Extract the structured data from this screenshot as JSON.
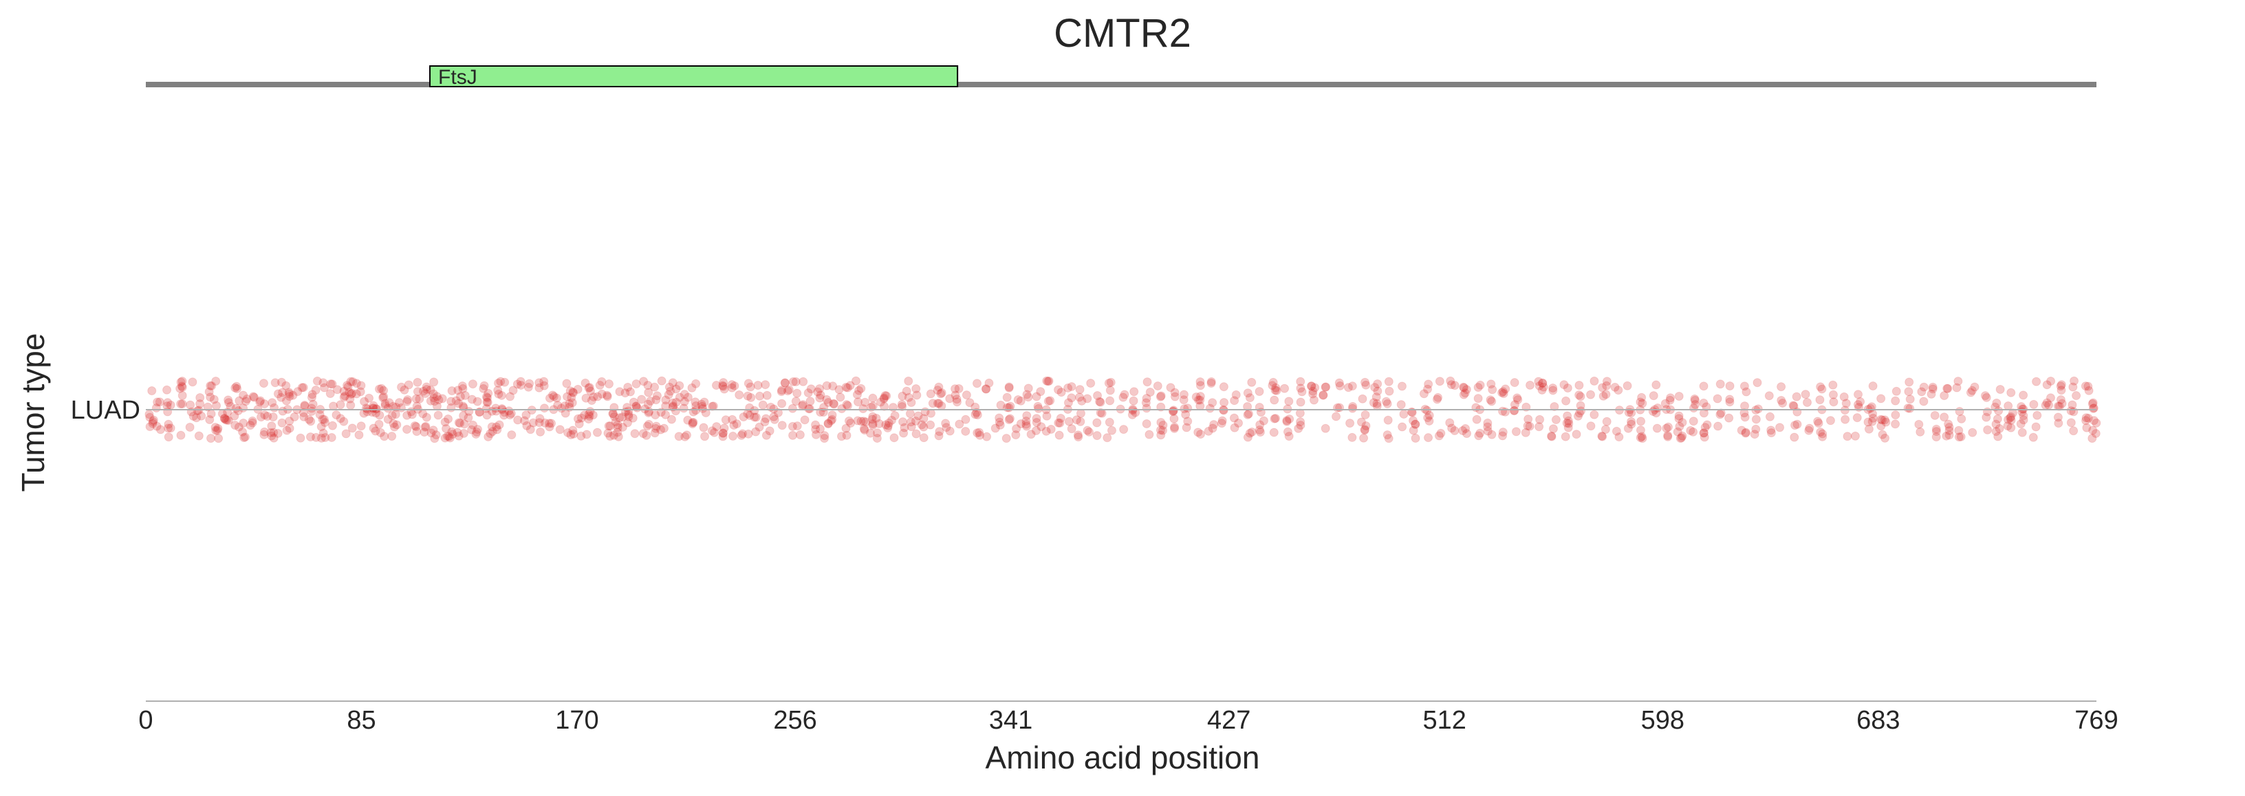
{
  "chart_data": {
    "type": "scatter",
    "title": "CMTR2",
    "xlabel": "Amino acid position",
    "ylabel": "Tumor type",
    "xlim": [
      0,
      769
    ],
    "xticks": [
      "0",
      "85",
      "170",
      "256",
      "341",
      "427",
      "512",
      "598",
      "683",
      "769"
    ],
    "categories": [
      "LUAD"
    ],
    "protein_length": 769,
    "domains": [
      {
        "name": "FtsJ",
        "start": 112,
        "end": 320,
        "color": "#90ee90"
      }
    ],
    "point_color": "#d62728",
    "point_alpha": 0.25,
    "grid": false,
    "series": [
      {
        "category": "LUAD",
        "positions": [
          2,
          5,
          9,
          14,
          18,
          21,
          25,
          28,
          31,
          33,
          36,
          39,
          42,
          45,
          47,
          50,
          53,
          56,
          59,
          62,
          65,
          68,
          70,
          73,
          76,
          79,
          81,
          84,
          87,
          90,
          93,
          95,
          98,
          101,
          104,
          107,
          110,
          113,
          115,
          118,
          120,
          123,
          125,
          128,
          131,
          134,
          136,
          139,
          141,
          144,
          147,
          150,
          152,
          155,
          158,
          160,
          163,
          166,
          168,
          171,
          174,
          176,
          179,
          182,
          185,
          187,
          190,
          193,
          196,
          198,
          201,
          204,
          207,
          210,
          213,
          216,
          220,
          224,
          228,
          232,
          235,
          238,
          241,
          244,
          247,
          250,
          253,
          256,
          259,
          262,
          265,
          268,
          271,
          274,
          277,
          280,
          283,
          286,
          289,
          292,
          295,
          298,
          301,
          304,
          307,
          310,
          313,
          316,
          320,
          324,
          328,
          332,
          336,
          340,
          344,
          348,
          352,
          356,
          360,
          364,
          368,
          372,
          376,
          380,
          385,
          390,
          395,
          400,
          405,
          410,
          415,
          420,
          425,
          430,
          435,
          440,
          445,
          450,
          455,
          460,
          465,
          470,
          475,
          480,
          485,
          490,
          495,
          500,
          505,
          510,
          515,
          520,
          525,
          530,
          535,
          540,
          545,
          550,
          555,
          560,
          565,
          570,
          575,
          580,
          585,
          590,
          595,
          600,
          605,
          610,
          615,
          620,
          625,
          630,
          635,
          640,
          645,
          650,
          655,
          660,
          665,
          670,
          675,
          680,
          685,
          690,
          695,
          700,
          705,
          710,
          715,
          720,
          725,
          730,
          735,
          740,
          745,
          750,
          755,
          760,
          765,
          768
        ]
      }
    ]
  }
}
